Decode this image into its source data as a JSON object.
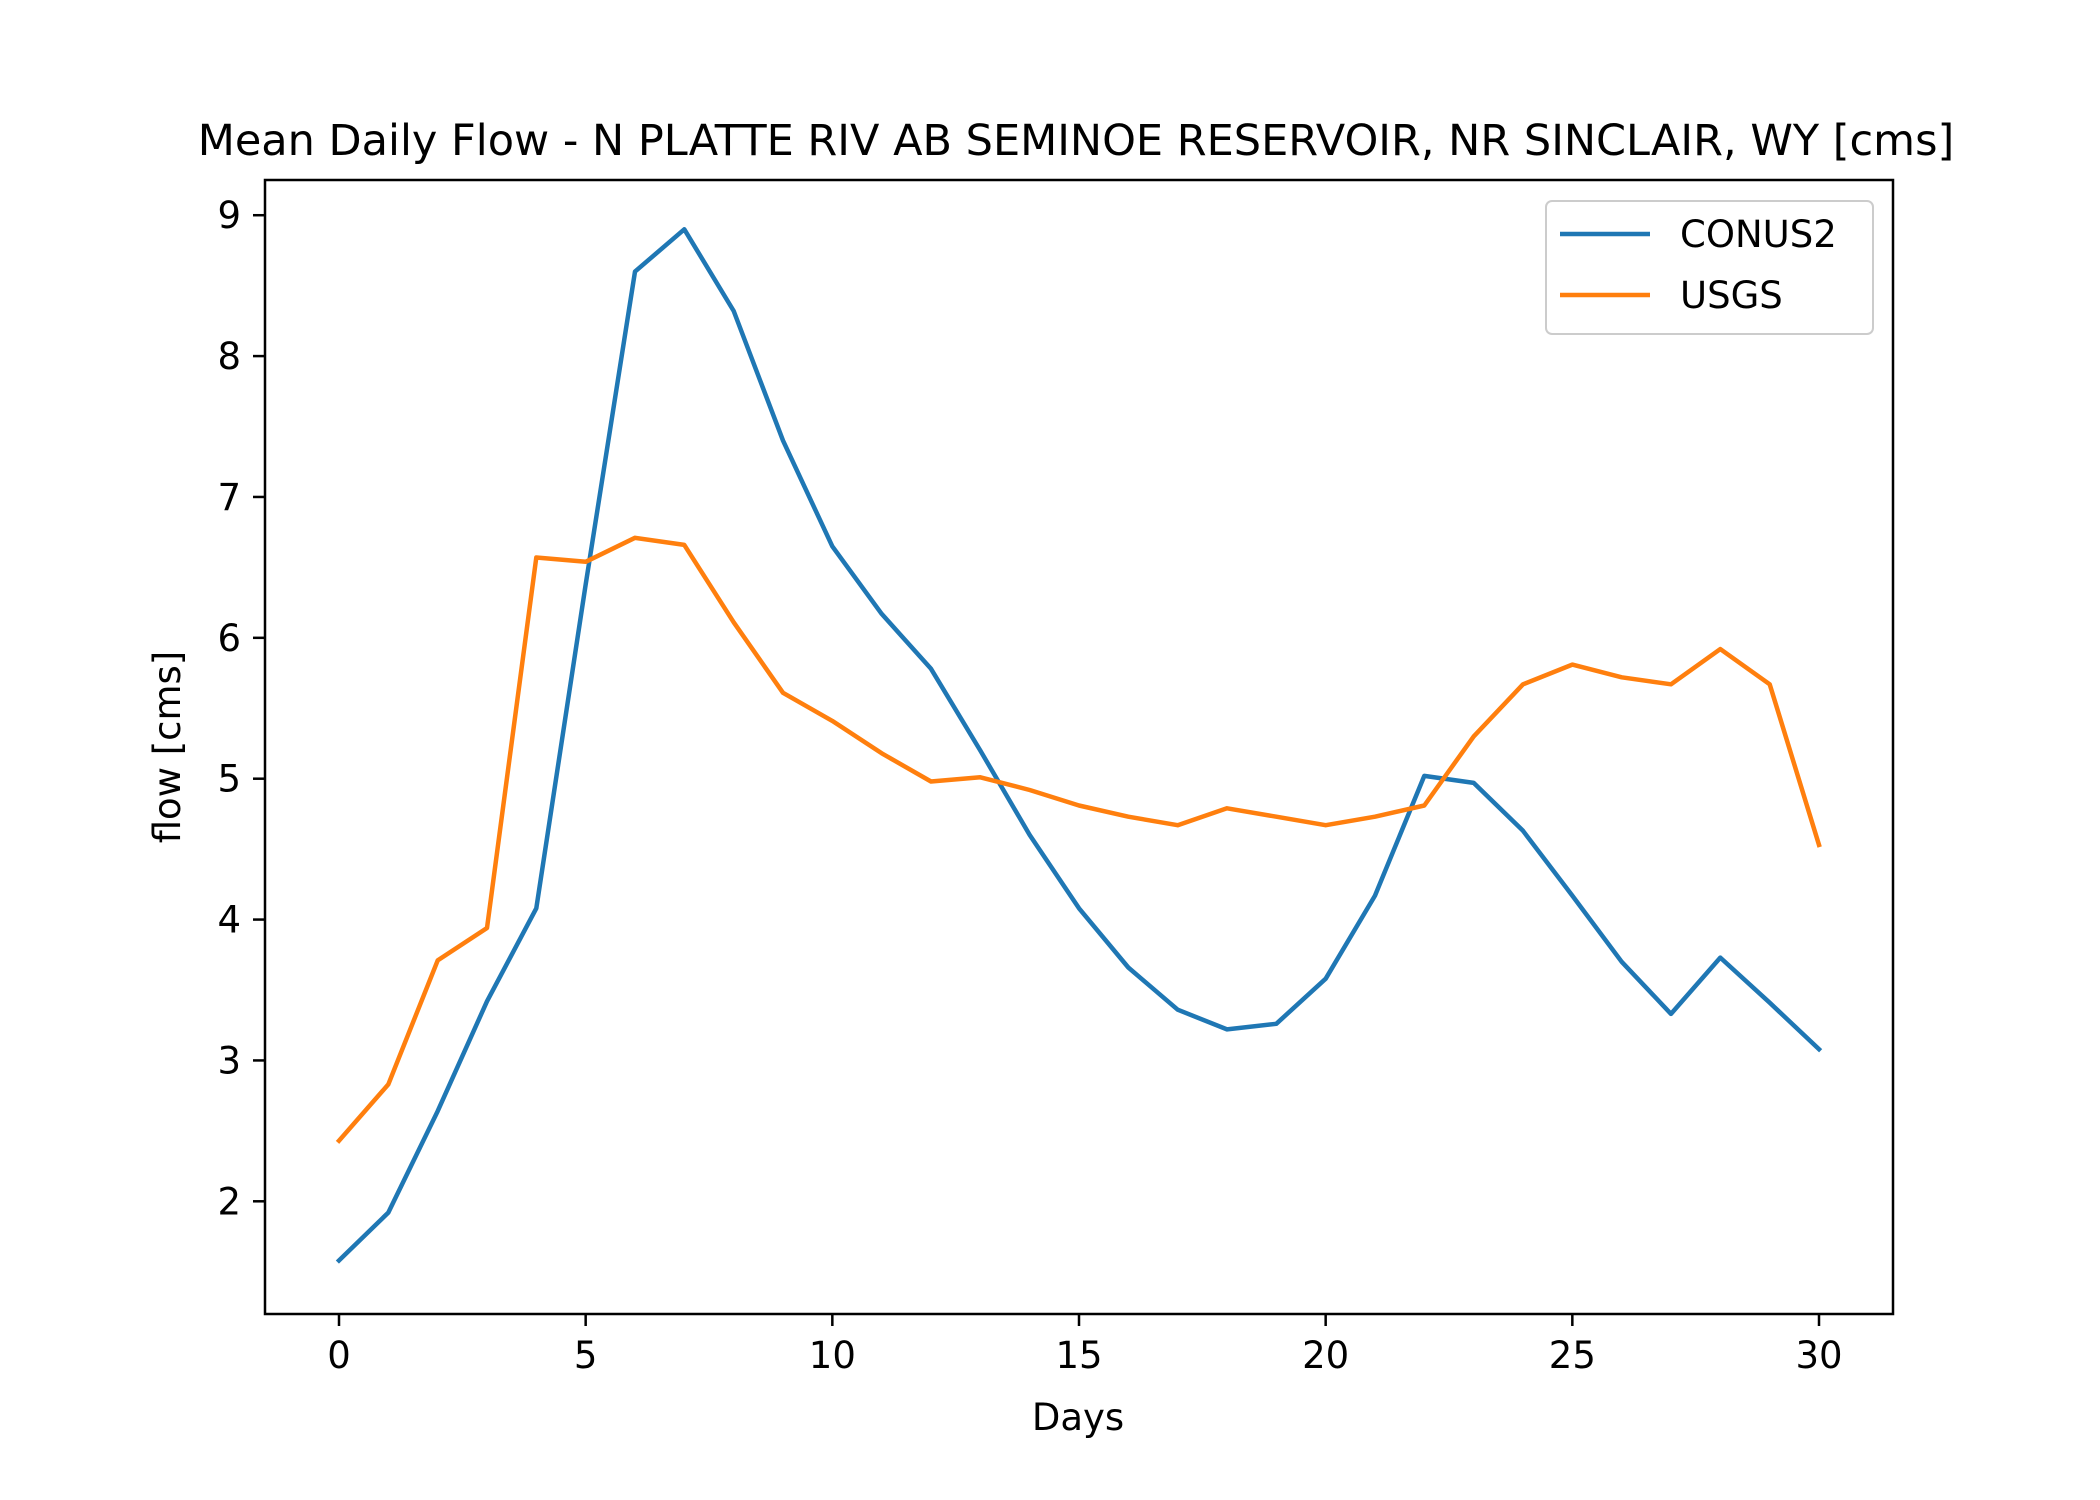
{
  "chart_data": {
    "type": "line",
    "title": "Mean Daily Flow - N PLATTE RIV AB SEMINOE RESERVOIR, NR SINCLAIR, WY [cms]",
    "xlabel": "Days",
    "ylabel": "flow [cms]",
    "xlim": [
      -1.5,
      31.5
    ],
    "ylim": [
      1.2,
      9.25
    ],
    "xticks": [
      0,
      5,
      10,
      15,
      20,
      25,
      30
    ],
    "yticks": [
      2,
      3,
      4,
      5,
      6,
      7,
      8,
      9
    ],
    "grid": false,
    "legend_position": "top-right",
    "x": [
      0,
      1,
      2,
      3,
      4,
      5,
      6,
      7,
      8,
      9,
      10,
      11,
      12,
      13,
      14,
      15,
      16,
      17,
      18,
      19,
      20,
      21,
      22,
      23,
      24,
      25,
      26,
      27,
      28,
      29,
      30
    ],
    "series": [
      {
        "name": "CONUS2",
        "color": "#1f77b4",
        "values": [
          1.58,
          1.92,
          2.64,
          3.42,
          4.08,
          6.38,
          8.6,
          8.9,
          8.32,
          7.4,
          6.65,
          6.17,
          5.78,
          5.2,
          4.6,
          4.08,
          3.66,
          3.36,
          3.22,
          3.26,
          3.58,
          4.17,
          5.02,
          4.97,
          4.63,
          4.17,
          3.7,
          3.33,
          3.73,
          3.41,
          3.08
        ]
      },
      {
        "name": "USGS",
        "color": "#ff7f0e",
        "values": [
          2.43,
          2.83,
          3.71,
          3.94,
          6.57,
          6.54,
          6.71,
          6.66,
          6.11,
          5.61,
          5.41,
          5.18,
          4.98,
          5.01,
          4.92,
          4.81,
          4.73,
          4.67,
          4.79,
          4.73,
          4.67,
          4.73,
          4.81,
          5.3,
          5.67,
          5.81,
          5.72,
          5.67,
          5.92,
          5.67,
          4.53
        ]
      }
    ]
  }
}
